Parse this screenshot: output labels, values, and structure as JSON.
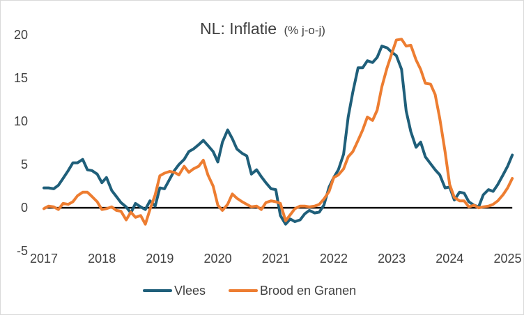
{
  "chart_data": {
    "type": "line",
    "title": "NL: Inflatie",
    "subtitle": "(% j-o-j)",
    "xlabel": "",
    "ylabel": "",
    "xlim": [
      2017,
      2025.15
    ],
    "ylim": [
      -7,
      22.5
    ],
    "yticks": [
      -5,
      0,
      5,
      10,
      15,
      20
    ],
    "xticks": [
      2017,
      2018,
      2019,
      2020,
      2021,
      2022,
      2023,
      2024,
      2025
    ],
    "zero_line": true,
    "grid": false,
    "legend_position": "bottom",
    "series": [
      {
        "name": "Vlees",
        "color": "#1f5f7a",
        "points": [
          [
            2017.0,
            2.3
          ],
          [
            2017.08,
            2.3
          ],
          [
            2017.17,
            2.2
          ],
          [
            2017.25,
            2.6
          ],
          [
            2017.33,
            3.4
          ],
          [
            2017.42,
            4.3
          ],
          [
            2017.5,
            5.2
          ],
          [
            2017.58,
            5.2
          ],
          [
            2017.67,
            5.6
          ],
          [
            2017.75,
            4.4
          ],
          [
            2017.83,
            4.3
          ],
          [
            2017.92,
            3.9
          ],
          [
            2018.0,
            2.9
          ],
          [
            2018.08,
            3.5
          ],
          [
            2018.17,
            2.0
          ],
          [
            2018.25,
            1.3
          ],
          [
            2018.33,
            0.6
          ],
          [
            2018.42,
            0.1
          ],
          [
            2018.5,
            -0.6
          ],
          [
            2018.58,
            0.5
          ],
          [
            2018.67,
            0.1
          ],
          [
            2018.75,
            -0.2
          ],
          [
            2018.83,
            0.8
          ],
          [
            2018.92,
            0.2
          ],
          [
            2019.0,
            2.3
          ],
          [
            2019.08,
            2.2
          ],
          [
            2019.17,
            3.3
          ],
          [
            2019.25,
            4.3
          ],
          [
            2019.33,
            5.0
          ],
          [
            2019.42,
            5.6
          ],
          [
            2019.5,
            6.5
          ],
          [
            2019.58,
            6.8
          ],
          [
            2019.67,
            7.3
          ],
          [
            2019.75,
            7.8
          ],
          [
            2019.83,
            7.2
          ],
          [
            2019.92,
            6.5
          ],
          [
            2020.0,
            5.3
          ],
          [
            2020.08,
            7.6
          ],
          [
            2020.17,
            9.0
          ],
          [
            2020.25,
            8.0
          ],
          [
            2020.33,
            6.8
          ],
          [
            2020.42,
            6.3
          ],
          [
            2020.5,
            6.0
          ],
          [
            2020.58,
            3.9
          ],
          [
            2020.67,
            4.4
          ],
          [
            2020.75,
            3.6
          ],
          [
            2020.83,
            2.9
          ],
          [
            2020.92,
            2.2
          ],
          [
            2021.0,
            2.1
          ],
          [
            2021.08,
            -0.9
          ],
          [
            2021.17,
            -1.9
          ],
          [
            2021.25,
            -1.3
          ],
          [
            2021.33,
            -1.6
          ],
          [
            2021.42,
            -1.4
          ],
          [
            2021.5,
            -0.7
          ],
          [
            2021.58,
            -0.3
          ],
          [
            2021.67,
            -0.6
          ],
          [
            2021.75,
            -0.5
          ],
          [
            2021.83,
            0.3
          ],
          [
            2021.92,
            2.4
          ],
          [
            2022.0,
            3.5
          ],
          [
            2022.08,
            4.4
          ],
          [
            2022.17,
            6.2
          ],
          [
            2022.25,
            10.5
          ],
          [
            2022.33,
            13.4
          ],
          [
            2022.42,
            16.2
          ],
          [
            2022.5,
            16.2
          ],
          [
            2022.58,
            17.0
          ],
          [
            2022.67,
            16.8
          ],
          [
            2022.75,
            17.4
          ],
          [
            2022.83,
            18.7
          ],
          [
            2022.92,
            18.5
          ],
          [
            2023.0,
            18.0
          ],
          [
            2023.08,
            17.6
          ],
          [
            2023.17,
            16.0
          ],
          [
            2023.25,
            11.2
          ],
          [
            2023.33,
            8.8
          ],
          [
            2023.42,
            7.0
          ],
          [
            2023.5,
            7.6
          ],
          [
            2023.58,
            5.9
          ],
          [
            2023.67,
            5.1
          ],
          [
            2023.75,
            4.4
          ],
          [
            2023.83,
            3.8
          ],
          [
            2023.92,
            2.3
          ],
          [
            2024.0,
            2.4
          ],
          [
            2024.08,
            0.9
          ],
          [
            2024.17,
            1.8
          ],
          [
            2024.25,
            1.7
          ],
          [
            2024.33,
            0.7
          ],
          [
            2024.42,
            0.3
          ],
          [
            2024.5,
            0.1
          ],
          [
            2024.58,
            1.5
          ],
          [
            2024.67,
            2.1
          ],
          [
            2024.75,
            1.9
          ],
          [
            2024.83,
            2.7
          ],
          [
            2024.92,
            3.8
          ],
          [
            2025.0,
            4.8
          ],
          [
            2025.08,
            6.1
          ]
        ]
      },
      {
        "name": "Brood en Granen",
        "color": "#ed7d31",
        "points": [
          [
            2017.0,
            -0.1
          ],
          [
            2017.08,
            0.2
          ],
          [
            2017.17,
            0.1
          ],
          [
            2017.25,
            -0.2
          ],
          [
            2017.33,
            0.5
          ],
          [
            2017.42,
            0.4
          ],
          [
            2017.5,
            0.7
          ],
          [
            2017.58,
            1.4
          ],
          [
            2017.67,
            1.8
          ],
          [
            2017.75,
            1.8
          ],
          [
            2017.83,
            1.3
          ],
          [
            2017.92,
            0.7
          ],
          [
            2018.0,
            -0.2
          ],
          [
            2018.08,
            -0.1
          ],
          [
            2018.17,
            0.1
          ],
          [
            2018.25,
            -0.3
          ],
          [
            2018.33,
            -0.4
          ],
          [
            2018.42,
            -1.4
          ],
          [
            2018.5,
            -0.5
          ],
          [
            2018.58,
            -1.1
          ],
          [
            2018.67,
            -0.9
          ],
          [
            2018.75,
            -1.9
          ],
          [
            2018.83,
            -0.2
          ],
          [
            2018.92,
            1.5
          ],
          [
            2019.0,
            3.7
          ],
          [
            2019.08,
            4.0
          ],
          [
            2019.17,
            4.2
          ],
          [
            2019.25,
            4.1
          ],
          [
            2019.33,
            3.8
          ],
          [
            2019.42,
            4.8
          ],
          [
            2019.5,
            4.1
          ],
          [
            2019.58,
            4.5
          ],
          [
            2019.67,
            4.8
          ],
          [
            2019.75,
            5.5
          ],
          [
            2019.83,
            3.8
          ],
          [
            2019.92,
            2.5
          ],
          [
            2020.0,
            0.3
          ],
          [
            2020.08,
            -0.3
          ],
          [
            2020.17,
            0.4
          ],
          [
            2020.25,
            1.6
          ],
          [
            2020.33,
            1.1
          ],
          [
            2020.42,
            0.7
          ],
          [
            2020.5,
            0.4
          ],
          [
            2020.58,
            0.1
          ],
          [
            2020.67,
            0.2
          ],
          [
            2020.75,
            -0.2
          ],
          [
            2020.83,
            0.6
          ],
          [
            2020.92,
            0.8
          ],
          [
            2021.0,
            0.7
          ],
          [
            2021.08,
            0.5
          ],
          [
            2021.17,
            -1.5
          ],
          [
            2021.25,
            -0.8
          ],
          [
            2021.33,
            -0.1
          ],
          [
            2021.42,
            0.2
          ],
          [
            2021.5,
            0.2
          ],
          [
            2021.58,
            0.1
          ],
          [
            2021.67,
            0.2
          ],
          [
            2021.75,
            0.4
          ],
          [
            2021.83,
            1.0
          ],
          [
            2021.92,
            1.9
          ],
          [
            2022.0,
            3.5
          ],
          [
            2022.08,
            3.8
          ],
          [
            2022.17,
            4.5
          ],
          [
            2022.25,
            5.9
          ],
          [
            2022.33,
            6.5
          ],
          [
            2022.42,
            7.8
          ],
          [
            2022.5,
            9.0
          ],
          [
            2022.58,
            10.5
          ],
          [
            2022.67,
            10.1
          ],
          [
            2022.75,
            11.3
          ],
          [
            2022.83,
            14.0
          ],
          [
            2022.92,
            16.2
          ],
          [
            2023.0,
            17.8
          ],
          [
            2023.08,
            19.4
          ],
          [
            2023.17,
            19.5
          ],
          [
            2023.25,
            18.7
          ],
          [
            2023.33,
            18.8
          ],
          [
            2023.42,
            17.1
          ],
          [
            2023.5,
            16.0
          ],
          [
            2023.58,
            14.4
          ],
          [
            2023.67,
            14.3
          ],
          [
            2023.75,
            13.1
          ],
          [
            2023.83,
            10.3
          ],
          [
            2023.92,
            6.5
          ],
          [
            2024.0,
            2.7
          ],
          [
            2024.08,
            1.2
          ],
          [
            2024.17,
            0.8
          ],
          [
            2024.25,
            0.8
          ],
          [
            2024.33,
            0.1
          ],
          [
            2024.42,
            0.3
          ],
          [
            2024.5,
            0.0
          ],
          [
            2024.58,
            0.1
          ],
          [
            2024.67,
            0.2
          ],
          [
            2024.75,
            0.4
          ],
          [
            2024.83,
            0.8
          ],
          [
            2024.92,
            1.5
          ],
          [
            2025.0,
            2.3
          ],
          [
            2025.08,
            3.4
          ]
        ]
      }
    ]
  }
}
